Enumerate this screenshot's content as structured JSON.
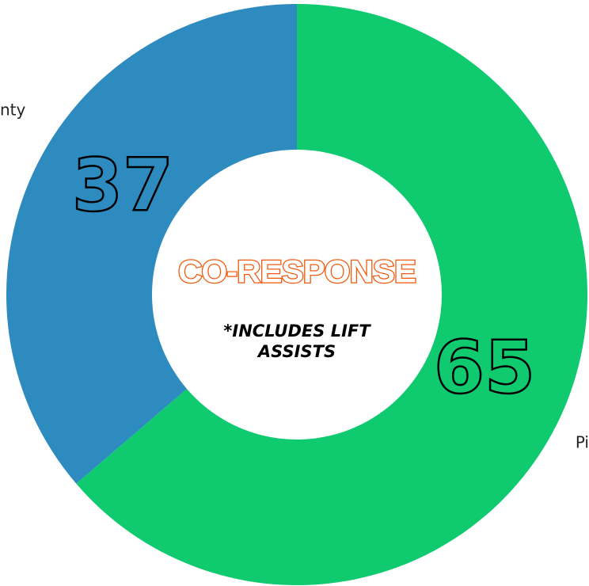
{
  "chart_data": {
    "type": "pie",
    "title": "CO-RESPONSE",
    "annotation": "*INCLUDES LIFT ASSISTS",
    "categories": [
      "Pi",
      "nty"
    ],
    "values": [
      65,
      37
    ],
    "colors": [
      "#0fca6e",
      "#2e8bbf"
    ]
  }
}
